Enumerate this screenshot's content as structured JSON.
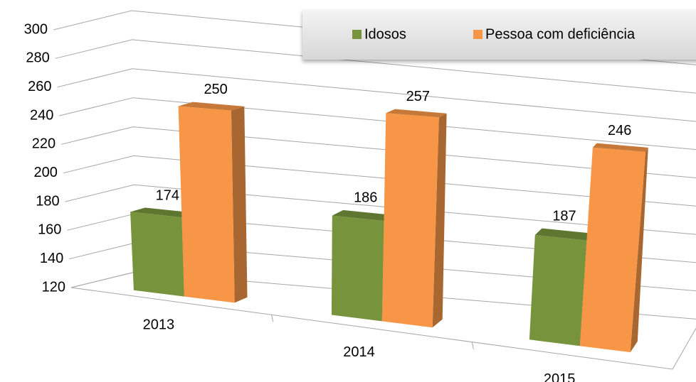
{
  "chart_data": {
    "type": "bar3d",
    "categories": [
      "2013",
      "2014",
      "2015"
    ],
    "series": [
      {
        "name": "Idosos",
        "color": "#77933c",
        "values": [
          174,
          186,
          187
        ]
      },
      {
        "name": "Pessoa com deficiência",
        "color": "#f79646",
        "values": [
          250,
          257,
          246
        ]
      }
    ],
    "ylim": [
      120,
      300
    ],
    "yticks": [
      120,
      140,
      160,
      180,
      200,
      220,
      240,
      260,
      280,
      300
    ],
    "grid": true,
    "legend": "top-right"
  }
}
